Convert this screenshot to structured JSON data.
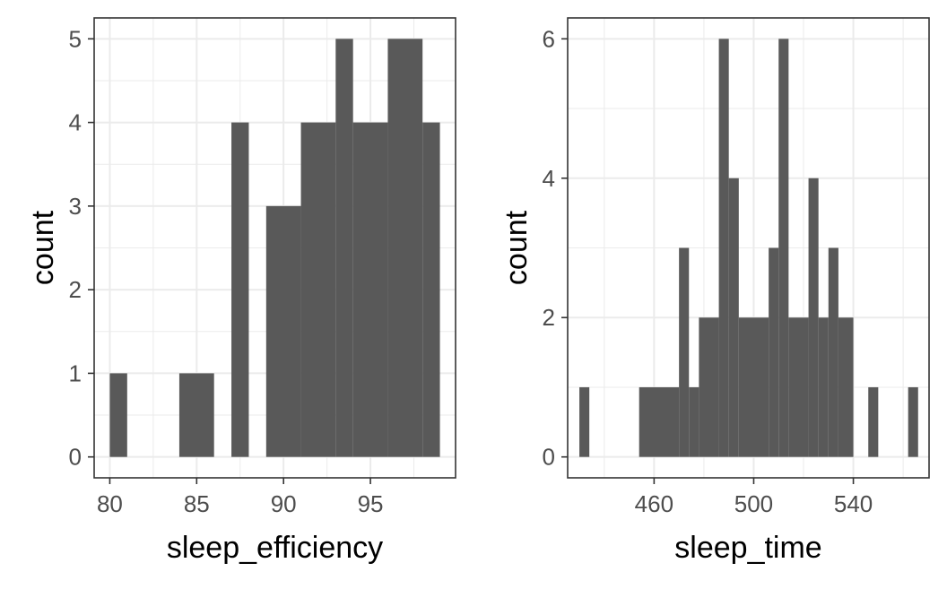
{
  "chart_data": [
    {
      "type": "bar",
      "subtype": "histogram",
      "xlabel": "sleep_efficiency",
      "ylabel": "count",
      "xlim": [
        79.1,
        99.9
      ],
      "ylim": [
        -0.25,
        5.25
      ],
      "x_ticks": [
        80,
        85,
        90,
        95
      ],
      "y_ticks": [
        0,
        1,
        2,
        3,
        4,
        5
      ],
      "grid": true,
      "bar_color": "#595959",
      "bins": [
        {
          "x0": 80.0,
          "x1": 81.0,
          "count": 1
        },
        {
          "x0": 84.0,
          "x1": 86.0,
          "count": 1
        },
        {
          "x0": 87.0,
          "x1": 88.0,
          "count": 4
        },
        {
          "x0": 89.0,
          "x1": 91.0,
          "count": 3
        },
        {
          "x0": 91.0,
          "x1": 93.0,
          "count": 4
        },
        {
          "x0": 93.0,
          "x1": 94.0,
          "count": 5
        },
        {
          "x0": 94.0,
          "x1": 96.0,
          "count": 4
        },
        {
          "x0": 96.0,
          "x1": 98.0,
          "count": 5
        },
        {
          "x0": 98.0,
          "x1": 99.0,
          "count": 4
        }
      ]
    },
    {
      "type": "bar",
      "subtype": "histogram",
      "xlabel": "sleep_time",
      "ylabel": "count",
      "xlim": [
        425.3,
        570.4
      ],
      "ylim": [
        -0.3,
        6.3
      ],
      "x_ticks": [
        460,
        500,
        540
      ],
      "y_ticks": [
        0,
        2,
        4,
        6
      ],
      "grid": true,
      "bar_color": "#595959",
      "bins": [
        {
          "x0": 430.0,
          "x1": 434.0,
          "count": 1
        },
        {
          "x0": 454.0,
          "x1": 470.0,
          "count": 1
        },
        {
          "x0": 470.0,
          "x1": 474.0,
          "count": 3
        },
        {
          "x0": 474.0,
          "x1": 478.0,
          "count": 1
        },
        {
          "x0": 478.0,
          "x1": 486.0,
          "count": 2
        },
        {
          "x0": 486.0,
          "x1": 490.0,
          "count": 6
        },
        {
          "x0": 490.0,
          "x1": 494.0,
          "count": 4
        },
        {
          "x0": 494.0,
          "x1": 506.0,
          "count": 2
        },
        {
          "x0": 506.0,
          "x1": 510.0,
          "count": 3
        },
        {
          "x0": 510.0,
          "x1": 514.0,
          "count": 6
        },
        {
          "x0": 514.0,
          "x1": 522.0,
          "count": 2
        },
        {
          "x0": 522.0,
          "x1": 526.0,
          "count": 4
        },
        {
          "x0": 526.0,
          "x1": 530.0,
          "count": 2
        },
        {
          "x0": 530.0,
          "x1": 534.0,
          "count": 3
        },
        {
          "x0": 534.0,
          "x1": 540.0,
          "count": 2
        },
        {
          "x0": 546.0,
          "x1": 550.0,
          "count": 1
        },
        {
          "x0": 562.0,
          "x1": 566.0,
          "count": 1
        }
      ]
    }
  ]
}
